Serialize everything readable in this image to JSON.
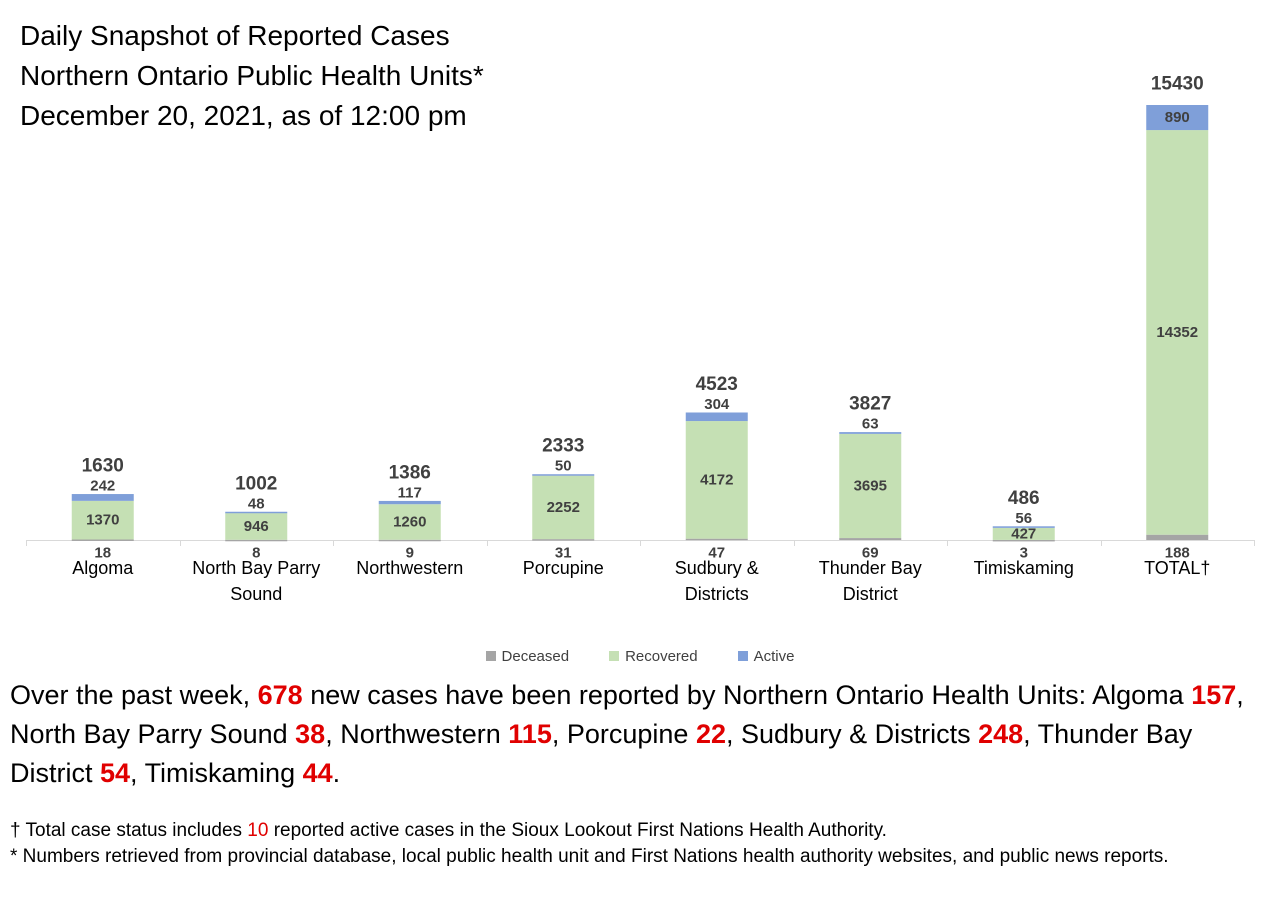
{
  "title": {
    "line1": "Daily Snapshot of Reported Cases",
    "line2": "Northern Ontario Public Health Units*",
    "line3": "December 20, 2021, as of 12:00 pm"
  },
  "chart_data": {
    "type": "bar",
    "stacked": true,
    "categories": [
      [
        "Algoma"
      ],
      [
        "North Bay Parry",
        "Sound"
      ],
      [
        "Northwestern"
      ],
      [
        "Porcupine"
      ],
      [
        "Sudbury &",
        "Districts"
      ],
      [
        "Thunder Bay",
        "District"
      ],
      [
        "Timiskaming"
      ],
      [
        "TOTAL†"
      ]
    ],
    "series": [
      {
        "name": "Deceased",
        "color": "#a5a5a5",
        "values": [
          18,
          8,
          9,
          31,
          47,
          69,
          3,
          188
        ]
      },
      {
        "name": "Recovered",
        "color": "#c5e0b4",
        "values": [
          1370,
          946,
          1260,
          2252,
          4172,
          3695,
          427,
          14352
        ]
      },
      {
        "name": "Active",
        "color": "#7f9fd9",
        "values": [
          242,
          48,
          117,
          50,
          304,
          63,
          56,
          890
        ]
      }
    ],
    "totals": [
      1630,
      1002,
      1386,
      2333,
      4523,
      3827,
      486,
      15430
    ],
    "ylim": [
      0,
      15430
    ],
    "grid": false,
    "legend_position": "bottom"
  },
  "summary": {
    "p1": "Over the past week, ",
    "total_new": "678",
    "p2": " new cases have been reported by Northern Ontario Health Units: ",
    "items": [
      {
        "name": "Algoma",
        "value": "157"
      },
      {
        "name": "North Bay Parry Sound",
        "value": "38"
      },
      {
        "name": "Northwestern",
        "value": "115"
      },
      {
        "name": "Porcupine",
        "value": "22"
      },
      {
        "name": "Sudbury & Districts",
        "value": "248"
      },
      {
        "name": "Thunder Bay District",
        "value": "54"
      },
      {
        "name": "Timiskaming",
        "value": "44"
      }
    ]
  },
  "footnotes": {
    "f1_pre": "† Total case status includes ",
    "f1_num": "10",
    "f1_post": " reported active cases in the Sioux Lookout First Nations Health Authority.",
    "f2": "* Numbers retrieved from provincial database, local public health unit and First Nations health authority websites, and public news reports."
  }
}
